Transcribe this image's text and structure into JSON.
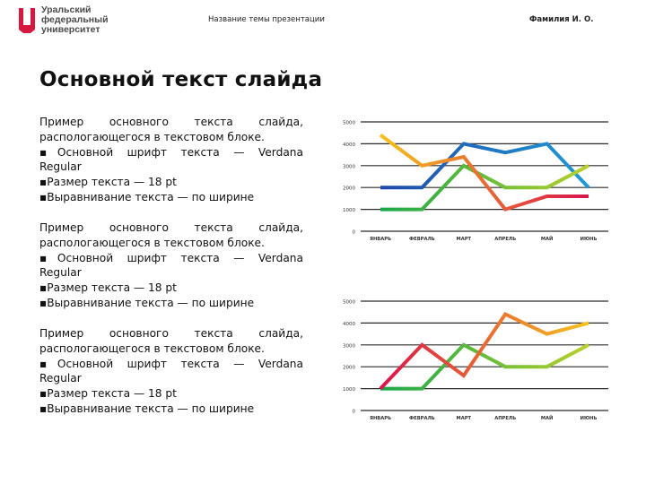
{
  "header": {
    "logo_lines": [
      "Уральский",
      "федеральный",
      "университет"
    ],
    "topic": "Название темы презентации",
    "author": "Фамилия И. О."
  },
  "slide": {
    "title": "Основной текст слайда"
  },
  "text_blocks": [
    {
      "intro_line1": "Пример основного текста слайда,",
      "intro_line2": "распологающегося в текстовом блоке.",
      "bullet1_a": "▪Основной шрифт текста — Verdana",
      "bullet1_b": "Regular",
      "bullet2": "▪Размер текста — 18 pt",
      "bullet3": "▪Выравнивание текста — по ширине"
    },
    {
      "intro_line1": "Пример основного текста слайда,",
      "intro_line2": "распологающегося в текстовом блоке.",
      "bullet1_a": "▪Основной шрифт текста — Verdana",
      "bullet1_b": "Regular",
      "bullet2": "▪Размер текста — 18 pt",
      "bullet3": "▪Выравнивание текста — по ширине"
    },
    {
      "intro_line1": "Пример основного текста слайда,",
      "intro_line2": "распологающегося в текстовом блоке.",
      "bullet1_a": "▪Основной шрифт текста — Verdana",
      "bullet1_b": "Regular",
      "bullet2": "▪Размер текста — 18 pt",
      "bullet3": "▪Выравнивание текста — по ширине"
    }
  ],
  "colors": {
    "logo_red": "#d6183f",
    "logo_gray": "#4a4a4a",
    "grid": "#2b2b2b"
  },
  "chart_data": [
    {
      "type": "line",
      "categories": [
        "ЯНВАРЬ",
        "ФЕВРАЛЬ",
        "МАРТ",
        "АПРЕЛЬ",
        "МАЙ",
        "ИЮНЬ"
      ],
      "yticks": [
        0,
        1000,
        2000,
        3000,
        4000,
        5000
      ],
      "ylim": [
        0,
        5000
      ],
      "grid": true,
      "series": [
        {
          "values": [
            2000,
            2000,
            4000,
            3600,
            4000,
            2000
          ],
          "gradient": [
            "#1f4aa8",
            "#1f9ad6"
          ]
        },
        {
          "values": [
            1000,
            1000,
            3000,
            2000,
            2000,
            3000
          ],
          "gradient": [
            "#17a84a",
            "#b7d12a"
          ]
        },
        {
          "values": [
            4400,
            3000,
            3400,
            1000,
            1600,
            1600
          ],
          "gradient": [
            "#f6c21c",
            "#d9134b"
          ]
        }
      ]
    },
    {
      "type": "line",
      "categories": [
        "ЯНВАРЬ",
        "ФЕВРАЛЬ",
        "МАРТ",
        "АПРЕЛЬ",
        "МАЙ",
        "ИЮНЬ"
      ],
      "yticks": [
        0,
        1000,
        2000,
        3000,
        4000,
        5000
      ],
      "ylim": [
        0,
        5000
      ],
      "grid": true,
      "series": [
        {
          "values": [
            1000,
            1000,
            3000,
            2000,
            2000,
            3000
          ],
          "gradient": [
            "#17a84a",
            "#b7d12a"
          ]
        },
        {
          "values": [
            1000,
            3000,
            1600,
            4400,
            3500,
            4000
          ],
          "gradient": [
            "#d9134b",
            "#f6c21c"
          ]
        }
      ]
    }
  ]
}
